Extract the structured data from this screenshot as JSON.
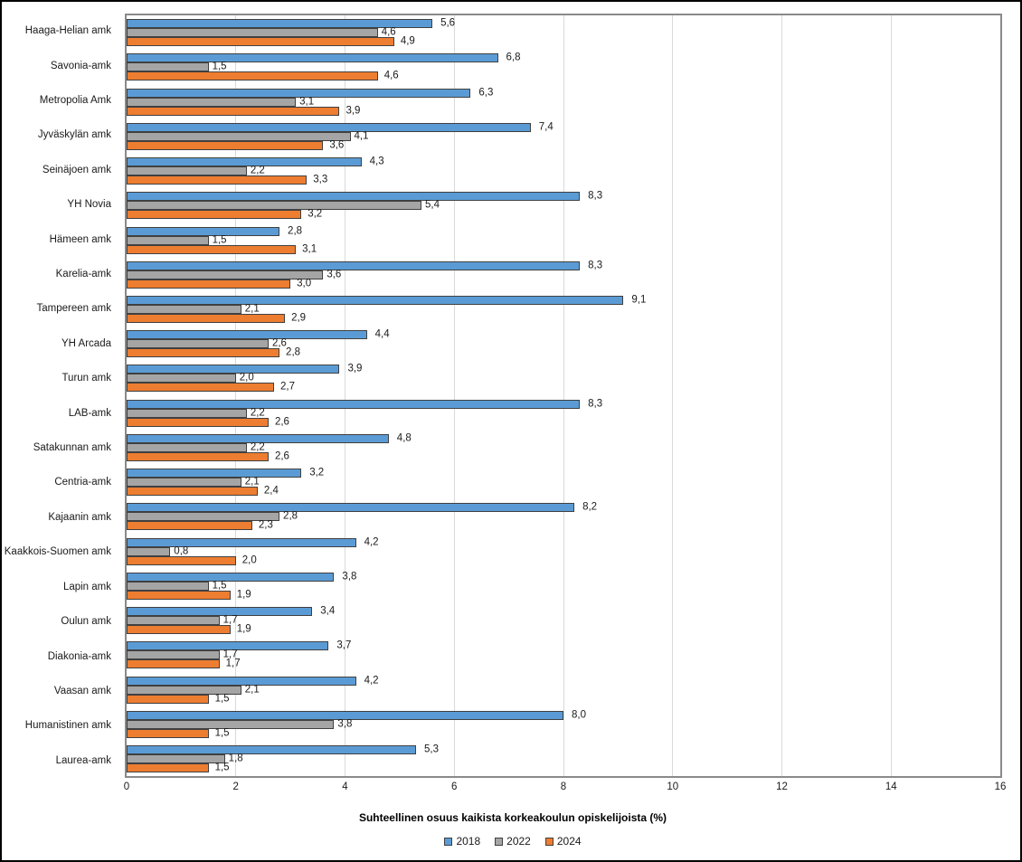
{
  "chart_data": {
    "type": "bar",
    "orientation": "horizontal",
    "title": "",
    "xlabel": "Suhteellinen osuus kaikista korkeakoulun opiskelijoista (%)",
    "ylabel": "",
    "xlim": [
      0,
      16
    ],
    "xticks": [
      0,
      2,
      4,
      6,
      8,
      10,
      12,
      14,
      16
    ],
    "grid": true,
    "legend_position": "bottom",
    "decimal_separator": ",",
    "categories": [
      "Haaga-Helian amk",
      "Savonia-amk",
      "Metropolia Amk",
      "Jyväskylän amk",
      "Seinäjoen amk",
      "YH Novia",
      "Hämeen amk",
      "Karelia-amk",
      "Tampereen amk",
      "YH Arcada",
      "Turun amk",
      "LAB-amk",
      "Satakunnan amk",
      "Centria-amk",
      "Kajaanin amk",
      "Kaakkois-Suomen amk",
      "Lapin amk",
      "Oulun amk",
      "Diakonia-amk",
      "Vaasan amk",
      "Humanistinen amk",
      "Laurea-amk"
    ],
    "series": [
      {
        "name": "2018",
        "color": "#5B9BD5",
        "values": [
          5.6,
          6.8,
          6.3,
          7.4,
          4.3,
          8.3,
          2.8,
          8.3,
          9.1,
          4.4,
          3.9,
          8.3,
          4.8,
          3.2,
          8.2,
          4.2,
          3.8,
          3.4,
          3.7,
          4.2,
          8.0,
          5.3
        ]
      },
      {
        "name": "2022",
        "color": "#A5A5A5",
        "values": [
          4.6,
          1.5,
          3.1,
          4.1,
          2.2,
          5.4,
          1.5,
          3.6,
          2.1,
          2.6,
          2.0,
          2.2,
          2.2,
          2.1,
          2.8,
          0.8,
          1.5,
          1.7,
          1.7,
          2.1,
          3.8,
          1.8
        ]
      },
      {
        "name": "2024",
        "color": "#ED7D31",
        "values": [
          4.9,
          4.6,
          3.9,
          3.6,
          3.3,
          3.2,
          3.1,
          3.0,
          2.9,
          2.8,
          2.7,
          2.6,
          2.6,
          2.4,
          2.3,
          2.0,
          1.9,
          1.9,
          1.7,
          1.5,
          1.5,
          1.5
        ]
      }
    ]
  },
  "colors": {
    "bar_border": "#404040",
    "gridline": "#D9D9D9",
    "plot_border": "#8A8A8A",
    "text": "#1A1A1A"
  }
}
